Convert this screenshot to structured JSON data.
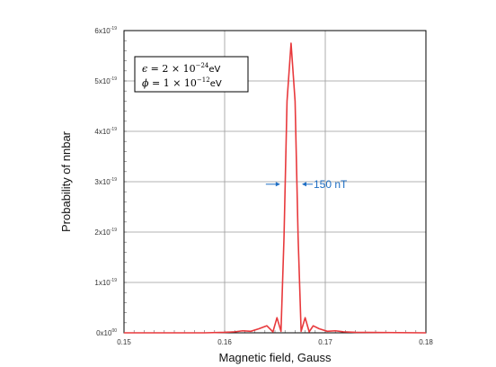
{
  "chart_data": {
    "type": "line",
    "xlabel": "Magnetic field, Gauss",
    "ylabel": "Probability of nnbar",
    "xlim": [
      0.15,
      0.18
    ],
    "ylim": [
      0,
      6e-19
    ],
    "x_ticks": [
      {
        "value": 0.15,
        "label": "0.15"
      },
      {
        "value": 0.16,
        "label": "0.16"
      },
      {
        "value": 0.17,
        "label": "0.17"
      },
      {
        "value": 0.18,
        "label": "0.18"
      }
    ],
    "y_ticks": [
      {
        "value": 0,
        "mant": "0x10",
        "exp": "00"
      },
      {
        "value": 1e-19,
        "mant": "1x10",
        "exp": "-19"
      },
      {
        "value": 2e-19,
        "mant": "2x10",
        "exp": "-19"
      },
      {
        "value": 3e-19,
        "mant": "3x10",
        "exp": "-19"
      },
      {
        "value": 4e-19,
        "mant": "4x10",
        "exp": "-19"
      },
      {
        "value": 5e-19,
        "mant": "5x10",
        "exp": "-19"
      },
      {
        "value": 6e-19,
        "mant": "6x10",
        "exp": "-19"
      }
    ],
    "grid": true,
    "series": [
      {
        "color": "#e8393c",
        "x": [
          0.15,
          0.158,
          0.16,
          0.161,
          0.1618,
          0.1626,
          0.1634,
          0.1642,
          0.1648,
          0.1652,
          0.1656,
          0.1659,
          0.1662,
          0.1666,
          0.167,
          0.1673,
          0.1676,
          0.168,
          0.1684,
          0.1688,
          0.1694,
          0.1702,
          0.171,
          0.1718,
          0.173,
          0.18
        ],
        "y": [
          0,
          0,
          1e-21,
          2e-21,
          4e-21,
          3e-21,
          8e-21,
          1.4e-20,
          2e-21,
          3e-20,
          3e-21,
          1.9e-19,
          4.6e-19,
          5.75e-19,
          4.6e-19,
          1.9e-19,
          3e-21,
          3e-20,
          2e-21,
          1.4e-20,
          8e-21,
          3e-21,
          4e-21,
          2e-21,
          1e-21,
          0
        ]
      }
    ],
    "legend": {
      "line1": {
        "sym": "ϵ",
        "text": " = 2 × 10",
        "exp": "−24",
        "unit": "eV"
      },
      "line2": {
        "sym": "ϕ",
        "text": " = 1 × 10",
        "exp": "−12",
        "unit": "eV"
      }
    },
    "annotation": {
      "text": "150 nT",
      "x_left": 0.1657,
      "x_right": 0.1675,
      "y": 2.95e-19
    }
  }
}
